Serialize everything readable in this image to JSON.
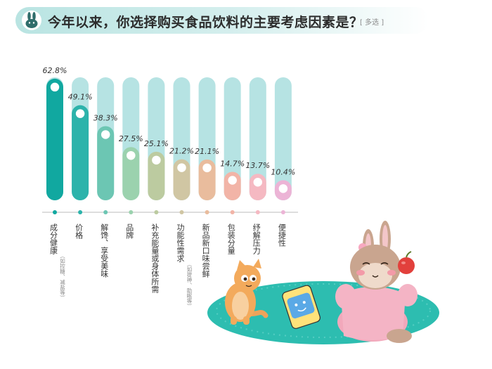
{
  "header": {
    "title": "今年以来，你选择购买食品饮料的主要考虑因素是？",
    "tag": "[ 多选 ]",
    "icon": "rabbit-icon"
  },
  "chart_data": {
    "type": "bar",
    "title": "今年以来，你选择购买食品饮料的主要考虑因素是？",
    "categories": [
      "成分健康",
      "价格",
      "解馋、享受美味",
      "品牌",
      "补充能量或身体所需",
      "功能性需求",
      "新品新口味尝鲜",
      "包装分量",
      "纾解压力",
      "便捷性"
    ],
    "notes": [
      "（如控糖、减盐等）",
      "",
      "",
      "",
      "",
      "（如提神、助眠等）",
      "",
      "",
      "",
      ""
    ],
    "values": [
      62.8,
      49.1,
      38.3,
      27.5,
      25.1,
      21.2,
      21.1,
      14.7,
      13.7,
      10.4
    ],
    "value_labels": [
      "62.8%",
      "49.1%",
      "38.3%",
      "27.5%",
      "25.1%",
      "21.2%",
      "21.1%",
      "14.7%",
      "13.7%",
      "10.4%"
    ],
    "ylim": [
      0,
      70
    ],
    "legend": "none",
    "grid": false,
    "colors": {
      "bars": [
        "#11a8a0",
        "#2cb3ab",
        "#6cc6b3",
        "#9bd2ae",
        "#bccba0",
        "#d0c6a3",
        "#e9bc9d",
        "#f2b4a7",
        "#f5b9c2",
        "#ecb4d6"
      ],
      "track": "#b6e3e3",
      "axis": "#bbbbbb"
    }
  },
  "illustration": {
    "cat_icon": "cat-icon",
    "bunny_icon": "bunny-icon",
    "snack_bag_icon": "snack-bag-icon",
    "apple_icon": "apple-icon",
    "rug_color": "#2dbdb0"
  }
}
